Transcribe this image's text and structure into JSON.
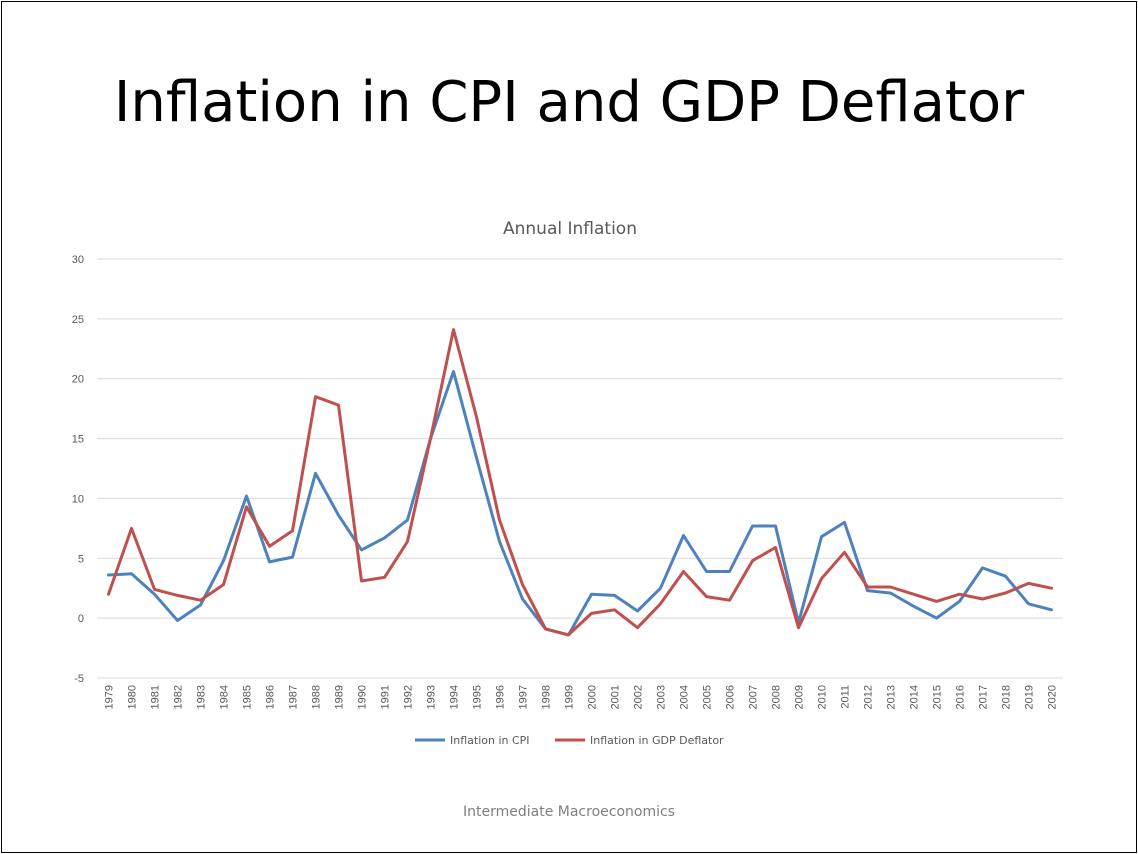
{
  "slide": {
    "title": "Inflation in CPI and GDP Deflator",
    "footer": "Intermediate Macroeconomics"
  },
  "chart_data": {
    "type": "line",
    "title": "Annual Inflation",
    "xlabel": "",
    "ylabel": "",
    "ylim": [
      -5,
      30
    ],
    "yticks": [
      -5,
      0,
      5,
      10,
      15,
      20,
      25,
      30
    ],
    "grid": true,
    "legend_position": "bottom",
    "categories": [
      "1979",
      "1980",
      "1981",
      "1982",
      "1983",
      "1984",
      "1985",
      "1986",
      "1987",
      "1988",
      "1989",
      "1990",
      "1991",
      "1992",
      "1993",
      "1994",
      "1995",
      "1996",
      "1997",
      "1998",
      "1999",
      "2000",
      "2001",
      "2002",
      "2003",
      "2004",
      "2005",
      "2006",
      "2007",
      "2008",
      "2009",
      "2010",
      "2011",
      "2012",
      "2013",
      "2014",
      "2015",
      "2016",
      "2017",
      "2018",
      "2019",
      "2020"
    ],
    "series": [
      {
        "name": "Inflation in CPI",
        "color": "#4f81bd",
        "values": [
          3.6,
          3.7,
          2.0,
          -0.2,
          1.1,
          4.8,
          10.2,
          4.7,
          5.1,
          12.1,
          8.6,
          5.7,
          6.7,
          8.2,
          15.0,
          20.6,
          13.4,
          6.4,
          1.6,
          -0.9,
          -1.4,
          2.0,
          1.9,
          0.6,
          2.5,
          6.9,
          3.9,
          3.9,
          7.7,
          7.7,
          -0.4,
          6.8,
          8.0,
          2.3,
          2.1,
          1.0,
          0.0,
          1.4,
          4.2,
          3.5,
          1.2,
          0.7
        ]
      },
      {
        "name": "Inflation in GDP Deflator",
        "color": "#c0504d",
        "values": [
          2.0,
          7.5,
          2.4,
          1.9,
          1.5,
          2.8,
          9.3,
          6.0,
          7.3,
          18.5,
          17.8,
          3.1,
          3.4,
          6.4,
          15.0,
          24.1,
          16.8,
          8.2,
          2.8,
          -0.9,
          -1.4,
          0.4,
          0.7,
          -0.8,
          1.2,
          3.9,
          1.8,
          1.5,
          4.8,
          5.9,
          -0.8,
          3.3,
          5.5,
          2.6,
          2.6,
          2.0,
          1.4,
          2.0,
          1.6,
          2.1,
          2.9,
          2.5
        ]
      }
    ]
  }
}
